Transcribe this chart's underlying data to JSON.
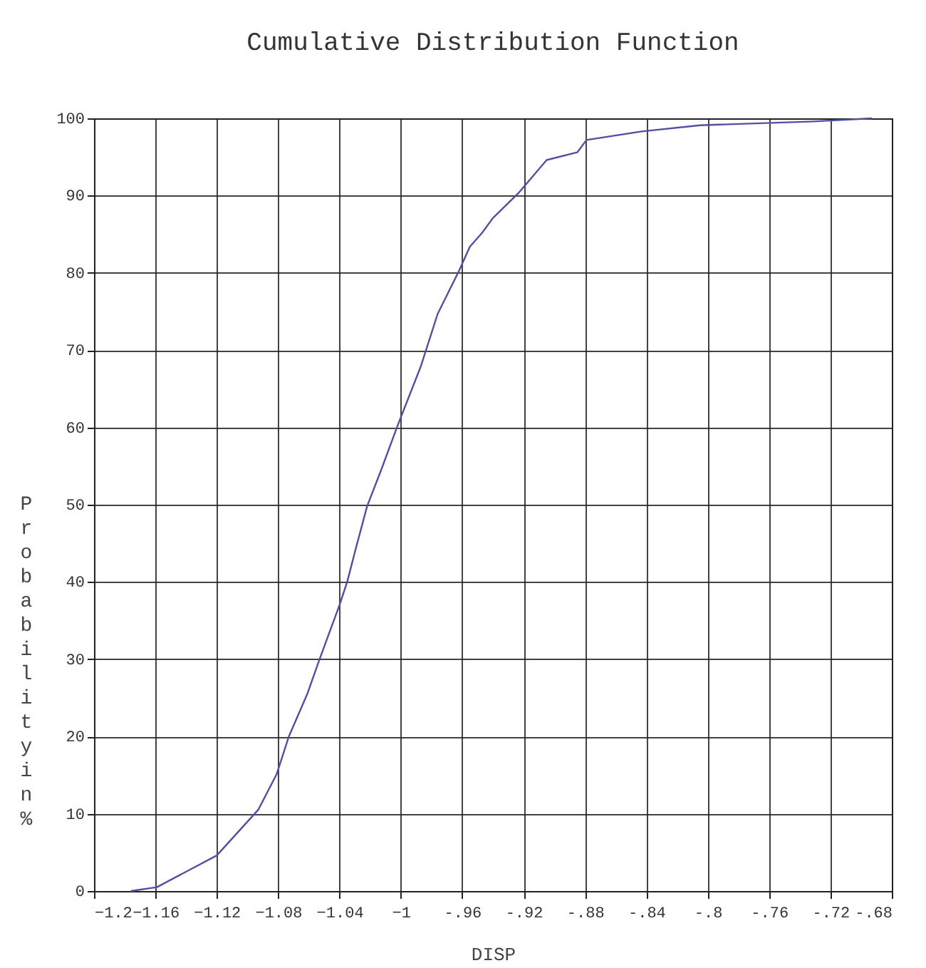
{
  "chart_data": {
    "type": "line",
    "title": "Cumulative Distribution Function",
    "xlabel": "DISP",
    "ylabel": "Probability in %",
    "x": [
      -1.176,
      -1.159,
      -1.12,
      -1.093,
      -1.081,
      -1.073,
      -1.061,
      -1.053,
      -1.04,
      -1.035,
      -1.029,
      -1.022,
      -1.013,
      -1.002,
      -0.987,
      -0.976,
      -0.962,
      -0.955,
      -0.947,
      -0.94,
      -0.923,
      -0.905,
      -0.885,
      -0.879,
      -0.843,
      -0.805,
      -0.731,
      -0.693
    ],
    "series": [
      {
        "color": "#5050a0",
        "values": [
          0,
          0.5,
          4.6,
          10.5,
          15.1,
          20,
          25.5,
          30,
          37,
          40,
          44.6,
          49.8,
          54.4,
          60.3,
          67.9,
          74.7,
          80.3,
          83.4,
          85.2,
          87.1,
          90.4,
          94.6,
          95.6,
          97.2,
          98.3,
          99.1,
          99.6,
          100
        ]
      }
    ],
    "xlim": [
      -1.2,
      -0.68
    ],
    "xticks": [
      -1.2,
      -1.16,
      -1.12,
      -1.08,
      -1.04,
      -1,
      {
        "value": -0.96,
        "label": "-.96"
      },
      {
        "value": -0.92,
        "label": "-.92"
      },
      {
        "value": -0.88,
        "label": "-.88"
      },
      {
        "value": -0.84,
        "label": "-.84"
      },
      {
        "value": -0.8,
        "label": "-.8"
      },
      {
        "value": -0.76,
        "label": "-.76"
      },
      {
        "value": -0.72,
        "label": "-.72"
      },
      {
        "value": -0.68,
        "label": "-.68"
      }
    ],
    "ylim": [
      0,
      100
    ],
    "yticks": [
      0,
      10,
      20,
      30,
      40,
      50,
      60,
      70,
      80,
      90,
      100
    ],
    "grid": true,
    "line_style": "solid",
    "marker": "none"
  }
}
